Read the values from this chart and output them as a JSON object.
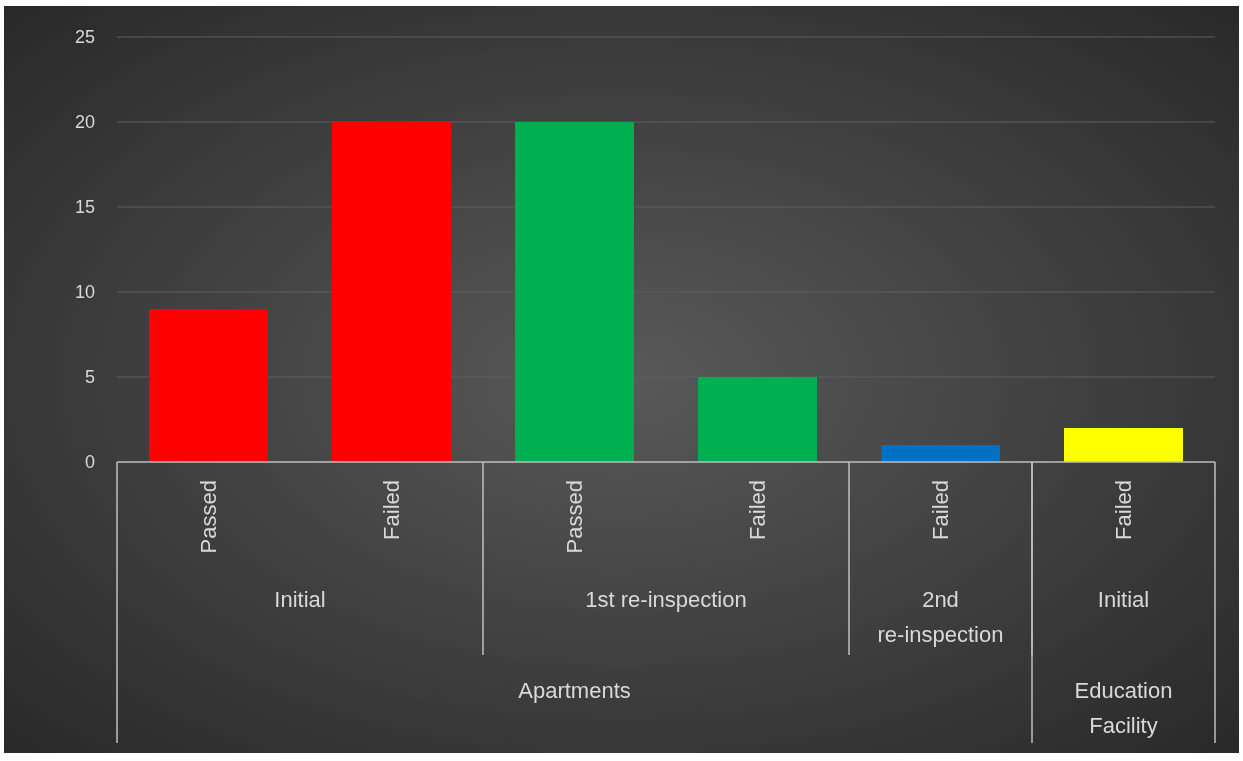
{
  "chart_data": {
    "type": "bar",
    "categories": [
      "Passed",
      "Failed",
      "Passed",
      "Failed",
      "Failed",
      "Failed"
    ],
    "values": [
      9,
      20,
      20,
      5,
      1,
      2
    ],
    "colors": [
      "#ff0000",
      "#ff0000",
      "#00b050",
      "#00b050",
      "#0070c0",
      "#ffff00"
    ],
    "ylim": [
      0,
      25
    ],
    "yticks": [
      0,
      5,
      10,
      15,
      20,
      25
    ],
    "grid": "y",
    "annotations": [
      "Initial",
      "1st re-inspection",
      "2nd re-inspection",
      "Initial",
      "Apartments",
      "Education Facility"
    ]
  }
}
